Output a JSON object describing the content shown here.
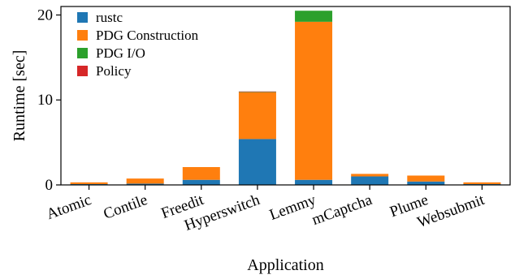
{
  "chart_data": {
    "type": "bar",
    "stacked": true,
    "title": "",
    "xlabel": "Application",
    "ylabel": "Runtime [sec]",
    "ylim": [
      0,
      21
    ],
    "yticks": [
      0,
      10,
      20
    ],
    "grid": false,
    "legend_position": "top-left",
    "categories": [
      "Atomic",
      "Contile",
      "Freedit",
      "Hyperswitch",
      "Lemmy",
      "mCaptcha",
      "Plume",
      "Websubmit"
    ],
    "series": [
      {
        "name": "rustc",
        "color": "#1f77b4",
        "values": [
          0.1,
          0.15,
          0.6,
          5.4,
          0.6,
          1.0,
          0.4,
          0.1
        ]
      },
      {
        "name": "PDG Construction",
        "color": "#ff7f0e",
        "values": [
          0.2,
          0.6,
          1.5,
          5.5,
          18.6,
          0.3,
          0.7,
          0.2
        ]
      },
      {
        "name": "PDG I/O",
        "color": "#2ca02c",
        "values": [
          0.0,
          0.0,
          0.0,
          0.05,
          1.3,
          0.0,
          0.0,
          0.0
        ]
      },
      {
        "name": "Policy",
        "color": "#d62728",
        "values": [
          0.0,
          0.0,
          0.0,
          0.05,
          0.0,
          0.0,
          0.0,
          0.0
        ]
      }
    ]
  }
}
